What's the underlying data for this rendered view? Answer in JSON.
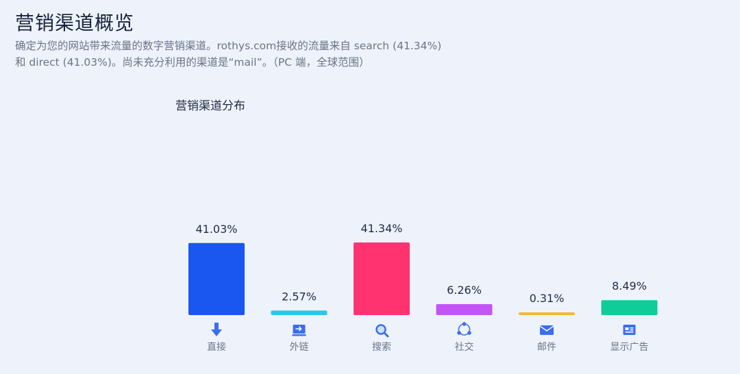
{
  "header": {
    "title": "营销渠道概览",
    "description": "确定为您的网站带来流量的数字营销渠道。rothys.com接收的流量来自 search (41.34%) 和 direct (41.03%)。尚未充分利用的渠道是“mail”。（PC 端，全球范围）"
  },
  "chart_data": {
    "type": "bar",
    "title": "营销渠道分布",
    "categories": [
      "直接",
      "外链",
      "搜索",
      "社交",
      "邮件",
      "显示广告"
    ],
    "values": [
      41.03,
      2.57,
      41.34,
      6.26,
      0.31,
      8.49
    ],
    "value_labels": [
      "41.03%",
      "2.57%",
      "41.34%",
      "6.26%",
      "0.31%",
      "8.49%"
    ],
    "colors": [
      "#1a56f0",
      "#27c7f0",
      "#ff3370",
      "#c455f5",
      "#f5b82e",
      "#10cc99"
    ],
    "icons": [
      "arrow-down-icon",
      "referral-icon",
      "search-icon",
      "social-icon",
      "mail-icon",
      "display-ad-icon"
    ],
    "ylim": [
      0,
      41.34
    ],
    "grid": false,
    "legend": "none"
  }
}
